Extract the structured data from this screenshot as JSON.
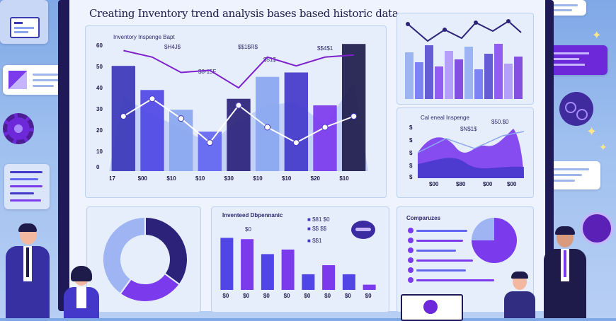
{
  "title": "Creating Inventory trend analysis bases based historic data",
  "main_chart": {
    "subtitle": "Inventory Inspenge Bapt",
    "annotations": [
      "$H4J$",
      "$$1$R$",
      "$8-15F",
      "$51$",
      "$$4$1"
    ],
    "y_ticks": [
      "60",
      "50",
      "40",
      "30",
      "20",
      "10",
      "0"
    ],
    "x_ticks": [
      "17",
      "$00",
      "$10",
      "$10",
      "$30",
      "$10",
      "$10",
      "$20",
      "$10"
    ]
  },
  "area_panel": {
    "subtitle": "Cal eneal Inspenge",
    "annotations": [
      "$N$1$",
      "$50.$0"
    ],
    "y_ticks": [
      "$",
      "$",
      "$",
      "$",
      "$"
    ],
    "x_ticks": [
      "$00",
      "$80",
      "$00",
      "$00"
    ]
  },
  "bar_panel": {
    "title": "Inventeed Dbpennanic",
    "tag": "$0",
    "legend": [
      "$81 $0",
      "$$ $$",
      "$$1"
    ],
    "x_ticks": [
      "$0",
      "$0",
      "$0",
      "$0",
      "$0",
      "$0",
      "$0",
      "$0"
    ]
  },
  "comparison_panel": {
    "title": "Comparuzes"
  },
  "colors": {
    "deep": "#2c227a",
    "indigo": "#4338ca",
    "violet": "#7c3aed",
    "periwinkle": "#8aa6ef",
    "frame": "#1f1a57"
  },
  "icons": [
    "gear-icon",
    "document-icon",
    "image-card-icon",
    "chat-bubble-icon",
    "sparkle-icon"
  ],
  "main_chart_data": {
    "type": "bar",
    "categories": [
      "17",
      "$00",
      "$10",
      "$10",
      "$30",
      "$10",
      "$10",
      "$20",
      "$10"
    ],
    "bars": [
      48,
      37,
      28,
      18,
      33,
      43,
      45,
      30,
      58
    ],
    "line_purple": [
      55,
      52,
      45,
      46,
      38,
      52,
      48,
      52,
      53
    ],
    "line_white": [
      25,
      33,
      24,
      13,
      30,
      20,
      13,
      20,
      25
    ],
    "ylim": [
      0,
      60
    ]
  },
  "donut_data": {
    "type": "pie",
    "values": [
      35,
      25,
      40
    ],
    "colors": [
      "#2c227a",
      "#7c3aed",
      "#9fb5f3"
    ]
  },
  "bar_panel_data": {
    "type": "bar",
    "values": [
      80,
      78,
      55,
      62,
      24,
      38,
      24,
      8
    ],
    "colors": [
      "#4f46e5",
      "#7c3aed",
      "#4f46e5",
      "#7c3aed",
      "#4f46e5",
      "#7c3aed",
      "#4f46e5",
      "#7c3aed"
    ],
    "ylim": [
      0,
      100
    ]
  },
  "comparison_pie": {
    "values": [
      75,
      25
    ],
    "colors": [
      "#7c3aed",
      "#9fb5f3"
    ]
  }
}
